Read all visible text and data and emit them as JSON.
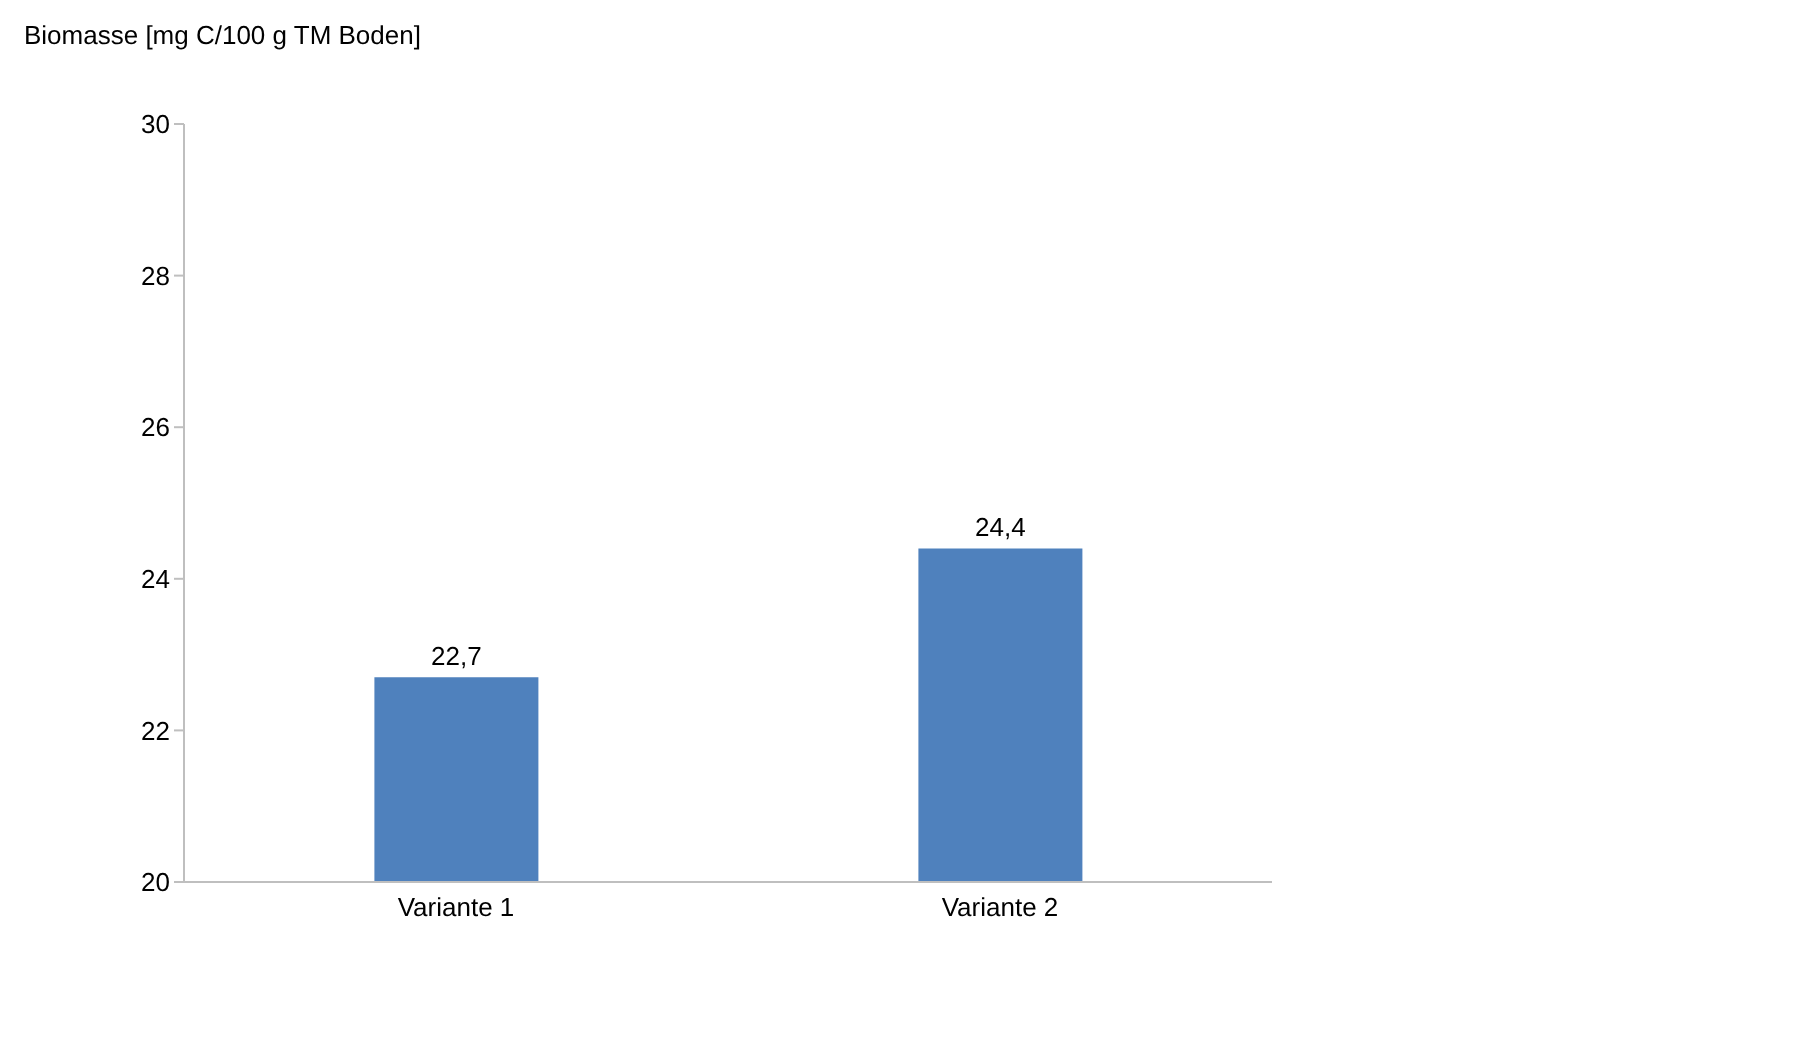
{
  "chart_data": {
    "type": "bar",
    "ylabel": "Biomasse [mg C/100 g TM Boden]",
    "categories": [
      "Variante 1",
      "Variante 2"
    ],
    "values": [
      22.7,
      24.4
    ],
    "value_labels": [
      "22,7",
      "24,4"
    ],
    "color": "#4f81bd",
    "ylim": [
      20,
      30
    ],
    "yticks": [
      20,
      22,
      24,
      26,
      28,
      30
    ],
    "grid": false,
    "legend": false
  }
}
